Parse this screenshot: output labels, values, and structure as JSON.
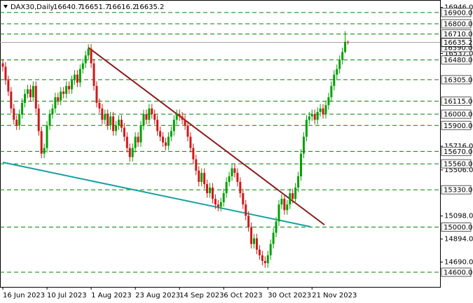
{
  "chart_data": {
    "type": "candlestick",
    "symbol": "DAX30,Daily",
    "ohlc_header": [
      "16640.7",
      "16651.7",
      "16616.2",
      "16635.2"
    ],
    "up_color": "#00a000",
    "down_color": "#d01818",
    "ylim": [
      14470,
      17011
    ],
    "yticks": [
      {
        "value": 16946,
        "label": "16946.0"
      },
      {
        "value": 16537,
        "label": "16537.0"
      },
      {
        "value": 15716,
        "label": "15716.0"
      },
      {
        "value": 15506,
        "label": "15506.0"
      },
      {
        "value": 15098,
        "label": "15098.0"
      },
      {
        "value": 14894,
        "label": "14894.0"
      },
      {
        "value": 14690,
        "label": "14690.0"
      }
    ],
    "xticks": [
      {
        "value": 0,
        "label": "16 Jun 2023"
      },
      {
        "value": 16,
        "label": "10 Jul 2023"
      },
      {
        "value": 32,
        "label": "1 Aug 2023"
      },
      {
        "value": 48,
        "label": "23 Aug 2023"
      },
      {
        "value": 64,
        "label": "14 Sep 2023"
      },
      {
        "value": 80,
        "label": "6 Oct 2023"
      },
      {
        "value": 96,
        "label": "30 Oct 2023"
      },
      {
        "value": 112,
        "label": "21 Nov 2023"
      }
    ],
    "levels": [
      {
        "value": 16900,
        "label": "16900.0"
      },
      {
        "value": 16800,
        "label": "16800.0"
      },
      {
        "value": 16710,
        "label": "16710.0"
      },
      {
        "value": 16480,
        "label": "16480.0"
      },
      {
        "value": 16305,
        "label": "16305.0"
      },
      {
        "value": 16115,
        "label": "16115.0"
      },
      {
        "value": 16000,
        "label": "16000.0"
      },
      {
        "value": 15900,
        "label": "15900.0"
      },
      {
        "value": 15670,
        "label": "15670.0"
      },
      {
        "value": 15560,
        "label": "15560.0"
      },
      {
        "value": 15330,
        "label": "15330.0"
      },
      {
        "value": 15000,
        "label": "15000.0"
      },
      {
        "value": 14600,
        "label": "14600.0"
      }
    ],
    "level_color": "#008000",
    "marker_level": {
      "value": 16590,
      "label": "16590.0"
    },
    "current_price": 16635.2,
    "trendlines": [
      {
        "color": "#8b1a1a",
        "from": [
          31,
          16590
        ],
        "to": [
          116.5,
          15020
        ]
      },
      {
        "color": "#17a0a0",
        "from": [
          0,
          15573
        ],
        "to": [
          111.4,
          15003
        ]
      }
    ],
    "candles": [
      [
        16450,
        16490,
        16380,
        16420
      ],
      [
        16420,
        16460,
        16260,
        16300
      ],
      [
        16300,
        16340,
        16160,
        16200
      ],
      [
        16200,
        16240,
        16010,
        16050
      ],
      [
        16050,
        16090,
        15910,
        15950
      ],
      [
        15950,
        15990,
        15860,
        15900
      ],
      [
        15900,
        16040,
        15860,
        16000
      ],
      [
        16000,
        16140,
        15960,
        16100
      ],
      [
        16100,
        16220,
        16060,
        16180
      ],
      [
        16180,
        16260,
        16140,
        16220
      ],
      [
        16220,
        16260,
        16110,
        16150
      ],
      [
        16150,
        16290,
        16110,
        16250
      ],
      [
        16250,
        16290,
        16010,
        16050
      ],
      [
        16050,
        16090,
        15810,
        15850
      ],
      [
        15850,
        15890,
        15610,
        15650
      ],
      [
        15650,
        15740,
        15610,
        15700
      ],
      [
        15700,
        15940,
        15660,
        15900
      ],
      [
        15900,
        16040,
        15860,
        16000
      ],
      [
        16000,
        16090,
        15960,
        16050
      ],
      [
        16050,
        16190,
        16010,
        16150
      ],
      [
        16150,
        16190,
        16080,
        16120
      ],
      [
        16120,
        16240,
        16080,
        16200
      ],
      [
        16200,
        16240,
        16140,
        16180
      ],
      [
        16180,
        16290,
        16140,
        16250
      ],
      [
        16250,
        16290,
        16180,
        16220
      ],
      [
        16220,
        16340,
        16180,
        16300
      ],
      [
        16300,
        16390,
        16260,
        16350
      ],
      [
        16350,
        16390,
        16240,
        16280
      ],
      [
        16280,
        16440,
        16240,
        16400
      ],
      [
        16400,
        16490,
        16360,
        16450
      ],
      [
        16450,
        16560,
        16410,
        16520
      ],
      [
        16520,
        16620,
        16480,
        16580
      ],
      [
        16580,
        16620,
        16410,
        16450
      ],
      [
        16450,
        16490,
        16210,
        16250
      ],
      [
        16250,
        16290,
        16060,
        16100
      ],
      [
        16100,
        16140,
        16010,
        16050
      ],
      [
        16050,
        16090,
        15910,
        15950
      ],
      [
        15950,
        16040,
        15910,
        16000
      ],
      [
        16000,
        16040,
        15860,
        15900
      ],
      [
        15900,
        16020,
        15860,
        15980
      ],
      [
        15980,
        16020,
        15810,
        15850
      ],
      [
        15850,
        15940,
        15810,
        15900
      ],
      [
        15900,
        15990,
        15860,
        15950
      ],
      [
        15950,
        15990,
        15840,
        15880
      ],
      [
        15880,
        15920,
        15760,
        15800
      ],
      [
        15800,
        15840,
        15660,
        15700
      ],
      [
        15700,
        15740,
        15580,
        15620
      ],
      [
        15620,
        15740,
        15580,
        15700
      ],
      [
        15700,
        15840,
        15660,
        15800
      ],
      [
        15800,
        15840,
        15710,
        15750
      ],
      [
        15750,
        15940,
        15710,
        15900
      ],
      [
        15900,
        16040,
        15860,
        16000
      ],
      [
        16000,
        16040,
        15910,
        15950
      ],
      [
        15950,
        16090,
        15910,
        16050
      ],
      [
        16050,
        16090,
        15960,
        16000
      ],
      [
        16000,
        16040,
        15910,
        15950
      ],
      [
        15950,
        15990,
        15810,
        15850
      ],
      [
        15850,
        15890,
        15760,
        15800
      ],
      [
        15800,
        15840,
        15710,
        15750
      ],
      [
        15750,
        15790,
        15680,
        15720
      ],
      [
        15720,
        15840,
        15680,
        15800
      ],
      [
        15800,
        15890,
        15760,
        15850
      ],
      [
        15850,
        15990,
        15810,
        15950
      ],
      [
        15950,
        16040,
        15910,
        16000
      ],
      [
        16000,
        16040,
        15940,
        15980
      ],
      [
        15980,
        16020,
        15910,
        15950
      ],
      [
        15950,
        15990,
        15860,
        15900
      ],
      [
        15900,
        15940,
        15760,
        15800
      ],
      [
        15800,
        15840,
        15660,
        15700
      ],
      [
        15700,
        15740,
        15560,
        15600
      ],
      [
        15600,
        15640,
        15460,
        15500
      ],
      [
        15500,
        15540,
        15360,
        15400
      ],
      [
        15400,
        15520,
        15360,
        15480
      ],
      [
        15480,
        15520,
        15340,
        15380
      ],
      [
        15380,
        15420,
        15260,
        15300
      ],
      [
        15300,
        15390,
        15260,
        15350
      ],
      [
        15350,
        15390,
        15210,
        15250
      ],
      [
        15250,
        15290,
        15160,
        15200
      ],
      [
        15200,
        15240,
        15140,
        15180
      ],
      [
        15180,
        15260,
        15140,
        15220
      ],
      [
        15220,
        15340,
        15180,
        15300
      ],
      [
        15300,
        15440,
        15260,
        15400
      ],
      [
        15400,
        15490,
        15360,
        15450
      ],
      [
        15450,
        15560,
        15410,
        15520
      ],
      [
        15520,
        15560,
        15440,
        15480
      ],
      [
        15480,
        15520,
        15360,
        15400
      ],
      [
        15400,
        15440,
        15260,
        15300
      ],
      [
        15300,
        15340,
        15160,
        15200
      ],
      [
        15200,
        15240,
        15060,
        15100
      ],
      [
        15100,
        15140,
        14960,
        15000
      ],
      [
        15000,
        15040,
        14810,
        14850
      ],
      [
        14850,
        14940,
        14810,
        14900
      ],
      [
        14900,
        14940,
        14760,
        14800
      ],
      [
        14800,
        14840,
        14710,
        14750
      ],
      [
        14750,
        14790,
        14660,
        14700
      ],
      [
        14700,
        14740,
        14640,
        14680
      ],
      [
        14680,
        14790,
        14640,
        14750
      ],
      [
        14750,
        14890,
        14710,
        14850
      ],
      [
        14850,
        14990,
        14810,
        14950
      ],
      [
        14950,
        15090,
        14910,
        15050
      ],
      [
        15050,
        15240,
        15010,
        15200
      ],
      [
        15200,
        15290,
        15160,
        15250
      ],
      [
        15250,
        15290,
        15110,
        15150
      ],
      [
        15150,
        15240,
        15110,
        15200
      ],
      [
        15200,
        15340,
        15160,
        15300
      ],
      [
        15300,
        15340,
        15210,
        15250
      ],
      [
        15250,
        15390,
        15210,
        15350
      ],
      [
        15350,
        15490,
        15310,
        15450
      ],
      [
        15450,
        15690,
        15410,
        15650
      ],
      [
        15650,
        15840,
        15610,
        15800
      ],
      [
        15800,
        15990,
        15760,
        15950
      ],
      [
        15950,
        16020,
        15910,
        15980
      ],
      [
        15980,
        16040,
        15940,
        16000
      ],
      [
        16000,
        16040,
        15910,
        15950
      ],
      [
        15950,
        16060,
        15910,
        16020
      ],
      [
        16020,
        16090,
        15980,
        16050
      ],
      [
        16050,
        16090,
        15960,
        16000
      ],
      [
        16000,
        16120,
        15960,
        16080
      ],
      [
        16080,
        16190,
        16040,
        16150
      ],
      [
        16150,
        16290,
        16110,
        16250
      ],
      [
        16250,
        16390,
        16210,
        16350
      ],
      [
        16350,
        16440,
        16310,
        16400
      ],
      [
        16400,
        16520,
        16360,
        16480
      ],
      [
        16480,
        16590,
        16440,
        16550
      ],
      [
        16550,
        16735,
        16540,
        16640.7
      ],
      [
        16640.7,
        16651.7,
        16616.2,
        16635.2
      ]
    ]
  }
}
